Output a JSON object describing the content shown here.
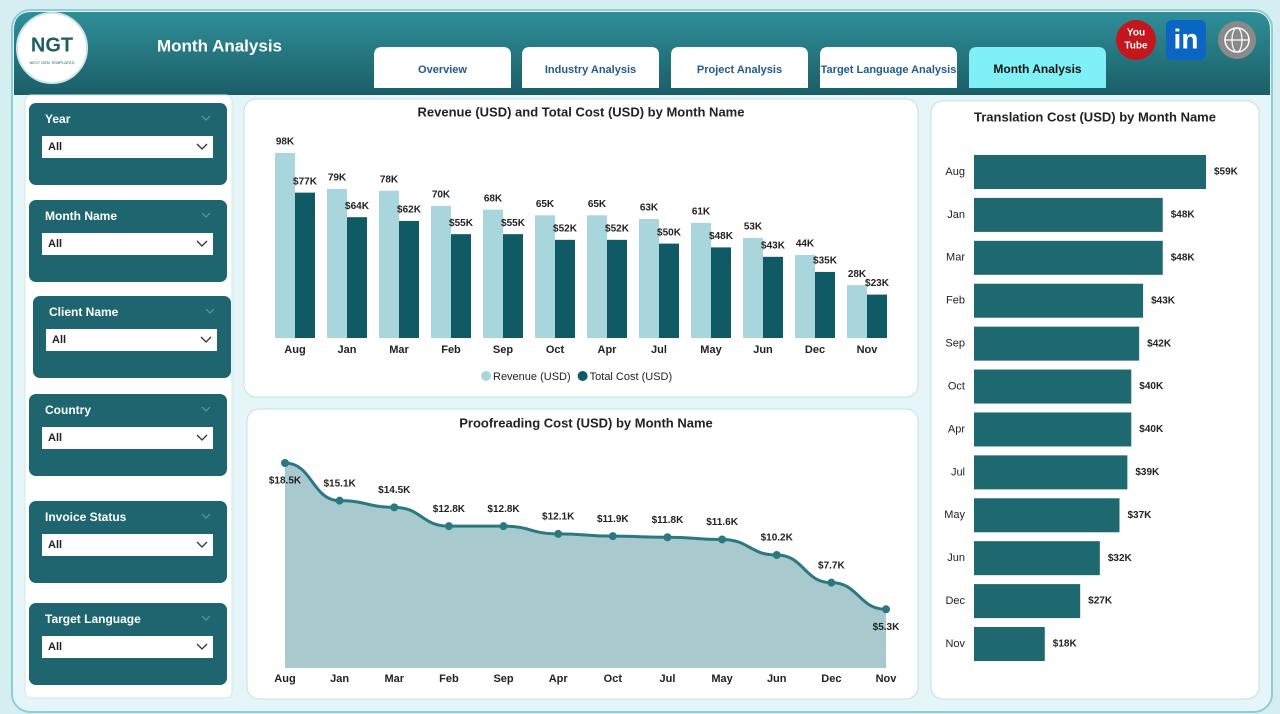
{
  "header": {
    "title": "Month Analysis",
    "logo": "NGT",
    "logo_tagline": "NEXT GEN TEMPLATES"
  },
  "tabs": [
    {
      "label": "Overview",
      "active": false
    },
    {
      "label": "Industry Analysis",
      "active": false
    },
    {
      "label": "Project Analysis",
      "active": false
    },
    {
      "label": "Target Language Analysis",
      "active": false
    },
    {
      "label": "Month Analysis",
      "active": true
    }
  ],
  "social": {
    "youtube": [
      "You",
      "Tube"
    ],
    "linkedin": "in"
  },
  "filters": [
    {
      "label": "Year",
      "value": "All"
    },
    {
      "label": "Month Name",
      "value": "All"
    },
    {
      "label": "Client Name",
      "value": "All"
    },
    {
      "label": "Country",
      "value": "All"
    },
    {
      "label": "Invoice Status",
      "value": "All"
    },
    {
      "label": "Target Language",
      "value": "All"
    }
  ],
  "chart_data": [
    {
      "type": "bar",
      "title": "Revenue (USD) and Total Cost (USD) by Month Name",
      "categories": [
        "Aug",
        "Jan",
        "Mar",
        "Feb",
        "Sep",
        "Oct",
        "Apr",
        "Jul",
        "May",
        "Jun",
        "Dec",
        "Nov"
      ],
      "series": [
        {
          "name": "Revenue (USD)",
          "color": "#a9d5dc",
          "values": [
            98000,
            79000,
            78000,
            70000,
            68000,
            65000,
            65000,
            63000,
            61000,
            53000,
            44000,
            28000
          ],
          "value_labels": [
            "98K",
            "79K",
            "78K",
            "70K",
            "68K",
            "65K",
            "65K",
            "63K",
            "61K",
            "53K",
            "44K",
            "28K"
          ]
        },
        {
          "name": "Total Cost (USD)",
          "color": "#0f5a64",
          "values": [
            77000,
            64000,
            62000,
            55000,
            55000,
            52000,
            52000,
            50000,
            48000,
            43000,
            35000,
            23000
          ],
          "value_labels": [
            "$77K",
            "$64K",
            "$62K",
            "$55K",
            "$55K",
            "$52K",
            "$52K",
            "$50K",
            "$48K",
            "$43K",
            "$35K",
            "$23K"
          ]
        }
      ],
      "legend": "bottom"
    },
    {
      "type": "area",
      "title": "Proofreading Cost (USD) by Month Name",
      "categories": [
        "Aug",
        "Jan",
        "Mar",
        "Feb",
        "Sep",
        "Apr",
        "Oct",
        "Jul",
        "May",
        "Jun",
        "Dec",
        "Nov"
      ],
      "values": [
        18500,
        15100,
        14500,
        12800,
        12800,
        12100,
        11900,
        11800,
        11600,
        10200,
        7700,
        5300
      ],
      "value_labels": [
        "$18.5K",
        "$15.1K",
        "$14.5K",
        "$12.8K",
        "$12.8K",
        "$12.1K",
        "$11.9K",
        "$11.8K",
        "$11.6K",
        "$10.2K",
        "$7.7K",
        "$5.3K"
      ],
      "color": "#2a7882",
      "fill": "#a8c9cd"
    },
    {
      "type": "hbar",
      "title": "Translation Cost (USD) by Month Name",
      "categories": [
        "Aug",
        "Jan",
        "Mar",
        "Feb",
        "Sep",
        "Oct",
        "Apr",
        "Jul",
        "May",
        "Jun",
        "Dec",
        "Nov"
      ],
      "values": [
        59000,
        48000,
        48000,
        43000,
        42000,
        40000,
        40000,
        39000,
        37000,
        32000,
        27000,
        18000
      ],
      "value_labels": [
        "$59K",
        "$48K",
        "$48K",
        "$43K",
        "$42K",
        "$40K",
        "$40K",
        "$39K",
        "$37K",
        "$32K",
        "$27K",
        "$18K"
      ],
      "color": "#1e6870"
    }
  ]
}
